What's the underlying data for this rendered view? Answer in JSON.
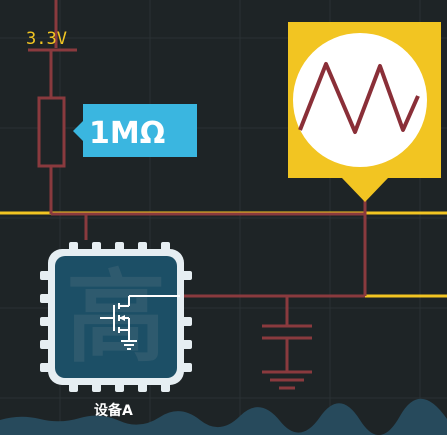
{
  "labels": {
    "supply_voltage": "3.3V",
    "resistor_value": "1MΩ",
    "chip_glyph": "高",
    "device_name": "设备A"
  },
  "colors": {
    "background": "#1e2426",
    "wire_red": "#8a3a3e",
    "signal_yellow": "#f2c522",
    "label_cyan": "#3ab6e0",
    "chip_body": "#1c4f66",
    "chip_frame": "#e6eef2",
    "waveform": "#8a2f38"
  },
  "icons": {
    "oscilloscope": "triangle-wave-icon",
    "transistor": "mosfet-icon",
    "ground": "ground-icon",
    "capacitor": "capacitor-icon",
    "resistor": "resistor-icon"
  }
}
